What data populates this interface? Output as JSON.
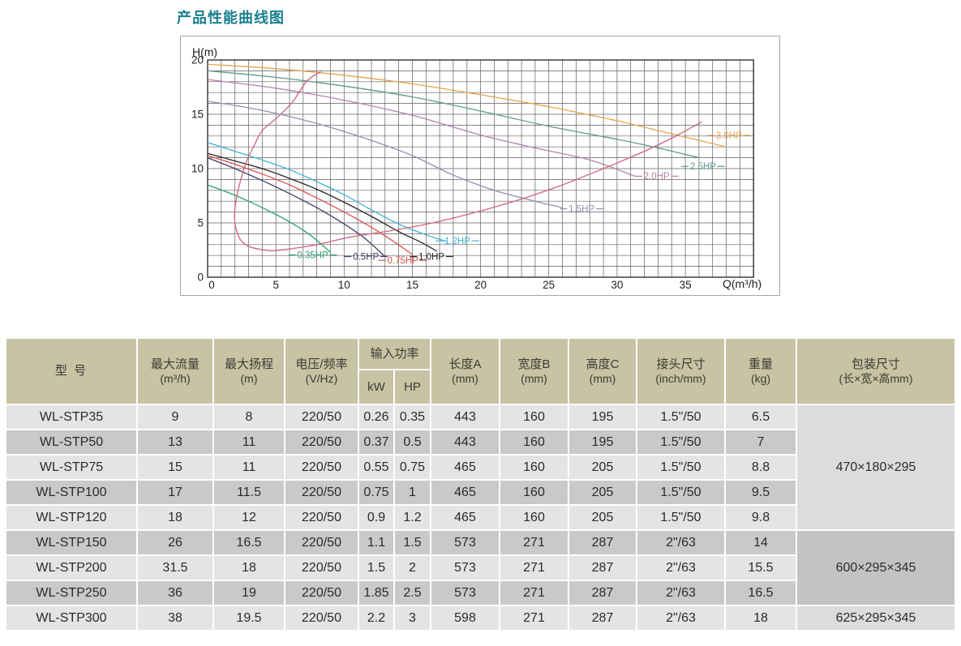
{
  "title": "产品性能曲线图",
  "chart_data": {
    "type": "line",
    "title": "产品性能曲线图",
    "xlabel": "Q(m³/h)",
    "ylabel": "H(m)",
    "xlim": [
      0,
      40
    ],
    "ylim": [
      0,
      20
    ],
    "grid": "minor gridlines every 1 unit on both axes, labels every 5",
    "legend_position": "labels placed at the end of each curve",
    "x_ticks": [
      0,
      5,
      10,
      15,
      20,
      25,
      30,
      35
    ],
    "y_ticks": [
      0,
      5,
      10,
      15,
      20
    ],
    "series": [
      {
        "name": "0.35HP",
        "color": "#2f9e6e",
        "label_pos": [
          7.7,
          2.05
        ],
        "points": [
          [
            0,
            8.5
          ],
          [
            1.5,
            7.8
          ],
          [
            3,
            7.0
          ],
          [
            4.5,
            6.1
          ],
          [
            6,
            5.1
          ],
          [
            7.5,
            3.9
          ],
          [
            9,
            2.3
          ]
        ]
      },
      {
        "name": "0.5HP",
        "color": "#3d3d68",
        "label_pos": [
          11.6,
          1.9
        ],
        "points": [
          [
            0,
            11.0
          ],
          [
            2,
            10.0
          ],
          [
            4,
            8.9
          ],
          [
            6,
            7.7
          ],
          [
            8,
            6.4
          ],
          [
            10,
            4.9
          ],
          [
            11.5,
            3.6
          ],
          [
            13,
            1.9
          ]
        ]
      },
      {
        "name": "0.75HP",
        "color": "#d94f4a",
        "label_pos": [
          14.3,
          1.55
        ],
        "points": [
          [
            0,
            11.2
          ],
          [
            2,
            10.4
          ],
          [
            4,
            9.5
          ],
          [
            6,
            8.5
          ],
          [
            8,
            7.3
          ],
          [
            10,
            6.0
          ],
          [
            12,
            4.6
          ],
          [
            13.5,
            3.4
          ],
          [
            15,
            2.1
          ]
        ]
      },
      {
        "name": "1.0HP",
        "color": "#262626",
        "label_pos": [
          16.4,
          1.9
        ],
        "points": [
          [
            0,
            11.4
          ],
          [
            2,
            10.7
          ],
          [
            4,
            10.0
          ],
          [
            6,
            9.1
          ],
          [
            8,
            8.1
          ],
          [
            10,
            6.9
          ],
          [
            12,
            5.6
          ],
          [
            14,
            4.2
          ],
          [
            15.5,
            3.3
          ],
          [
            16.8,
            2.4
          ]
        ]
      },
      {
        "name": "1.2HP",
        "color": "#41b4d2",
        "label_pos": [
          18.3,
          3.35
        ],
        "points": [
          [
            0,
            12.4
          ],
          [
            2,
            11.6
          ],
          [
            4,
            10.8
          ],
          [
            6,
            9.9
          ],
          [
            8,
            8.8
          ],
          [
            10,
            7.6
          ],
          [
            12,
            6.2
          ],
          [
            14,
            4.9
          ],
          [
            16,
            3.9
          ],
          [
            17.5,
            3.3
          ]
        ]
      },
      {
        "name": "1.5HP",
        "color": "#9091b4",
        "label_pos": [
          27.4,
          6.3
        ],
        "points": [
          [
            0,
            16.2
          ],
          [
            3,
            15.6
          ],
          [
            6,
            14.8
          ],
          [
            9,
            13.8
          ],
          [
            12,
            12.6
          ],
          [
            15,
            11.2
          ],
          [
            18,
            9.4
          ],
          [
            21,
            8.0
          ],
          [
            24,
            7.0
          ],
          [
            26,
            6.4
          ]
        ]
      },
      {
        "name": "2.0HP",
        "color": "#b980a8",
        "label_pos": [
          32.9,
          9.3
        ],
        "points": [
          [
            0,
            18.2
          ],
          [
            5,
            17.4
          ],
          [
            10,
            16.3
          ],
          [
            15,
            14.9
          ],
          [
            20,
            13.1
          ],
          [
            24,
            11.9
          ],
          [
            28,
            10.8
          ],
          [
            31.3,
            9.3
          ]
        ]
      },
      {
        "name": "2.5HP",
        "color": "#5f9a90",
        "label_pos": [
          36.3,
          10.2
        ],
        "points": [
          [
            0,
            19.0
          ],
          [
            5,
            18.4
          ],
          [
            10,
            17.6
          ],
          [
            15,
            16.6
          ],
          [
            20,
            15.3
          ],
          [
            25,
            13.9
          ],
          [
            30,
            12.7
          ],
          [
            33,
            11.9
          ],
          [
            36,
            11.0
          ]
        ]
      },
      {
        "name": "3.0HP",
        "color": "#e7a24b",
        "label_pos": [
          38.2,
          13.05
        ],
        "points": [
          [
            0,
            19.6
          ],
          [
            5,
            19.2
          ],
          [
            10,
            18.6
          ],
          [
            15,
            17.8
          ],
          [
            20,
            16.8
          ],
          [
            25,
            15.7
          ],
          [
            30,
            14.4
          ],
          [
            34,
            13.2
          ],
          [
            38,
            12.0
          ]
        ]
      },
      {
        "name": "operating-envelope",
        "color": "#cf647e",
        "label_pos": null,
        "points": [
          [
            8.3,
            18.9
          ],
          [
            7.3,
            18.1
          ],
          [
            6.2,
            16.1
          ],
          [
            5.0,
            14.6
          ],
          [
            4.0,
            13.5
          ],
          [
            3.4,
            12.1
          ],
          [
            2.9,
            10.8
          ],
          [
            2.5,
            9.3
          ],
          [
            2.2,
            7.8
          ],
          [
            2.0,
            6.3
          ],
          [
            2.0,
            5.0
          ],
          [
            2.2,
            4.0
          ],
          [
            2.5,
            3.3
          ],
          [
            3.1,
            2.8
          ],
          [
            3.9,
            2.55
          ],
          [
            4.8,
            2.45
          ],
          [
            6,
            2.6
          ],
          [
            8,
            3.0
          ],
          [
            10.5,
            3.7
          ],
          [
            13.5,
            4.3
          ],
          [
            16.5,
            5.0
          ],
          [
            20,
            6.1
          ],
          [
            23,
            7.2
          ],
          [
            26,
            8.5
          ],
          [
            29,
            10.0
          ],
          [
            32,
            11.6
          ],
          [
            34,
            12.8
          ],
          [
            36.2,
            14.3
          ]
        ]
      }
    ]
  },
  "table": {
    "headers": {
      "model": "型 号",
      "max_flow": "最大流量",
      "max_flow_unit": "(m³/h)",
      "max_head": "最大扬程",
      "max_head_unit": "(m)",
      "voltage": "电压/频率",
      "voltage_unit": "(V/Hz)",
      "power": "输入功率",
      "power_kw": "kW",
      "power_hp": "HP",
      "length": "长度A",
      "length_unit": "(mm)",
      "width": "宽度B",
      "width_unit": "(mm)",
      "height": "高度C",
      "height_unit": "(mm)",
      "connector": "接头尺寸",
      "connector_unit": "(inch/mm)",
      "weight": "重量",
      "weight_unit": "(kg)",
      "packaging": "包装尺寸",
      "packaging_unit": "(长×宽×高mm)"
    },
    "rows": [
      {
        "model": "WL-STP35",
        "max_flow": "9",
        "max_head": "8",
        "voltage": "220/50",
        "kw": "0.26",
        "hp": "0.35",
        "length": "443",
        "width": "160",
        "height": "195",
        "connector": "1.5\"/50",
        "weight": "6.5"
      },
      {
        "model": "WL-STP50",
        "max_flow": "13",
        "max_head": "11",
        "voltage": "220/50",
        "kw": "0.37",
        "hp": "0.5",
        "length": "443",
        "width": "160",
        "height": "195",
        "connector": "1.5\"/50",
        "weight": "7"
      },
      {
        "model": "WL-STP75",
        "max_flow": "15",
        "max_head": "11",
        "voltage": "220/50",
        "kw": "0.55",
        "hp": "0.75",
        "length": "465",
        "width": "160",
        "height": "205",
        "connector": "1.5\"/50",
        "weight": "8.8"
      },
      {
        "model": "WL-STP100",
        "max_flow": "17",
        "max_head": "11.5",
        "voltage": "220/50",
        "kw": "0.75",
        "hp": "1",
        "length": "465",
        "width": "160",
        "height": "205",
        "connector": "1.5\"/50",
        "weight": "9.5"
      },
      {
        "model": "WL-STP120",
        "max_flow": "18",
        "max_head": "12",
        "voltage": "220/50",
        "kw": "0.9",
        "hp": "1.2",
        "length": "465",
        "width": "160",
        "height": "205",
        "connector": "1.5\"/50",
        "weight": "9.8"
      },
      {
        "model": "WL-STP150",
        "max_flow": "26",
        "max_head": "16.5",
        "voltage": "220/50",
        "kw": "1.1",
        "hp": "1.5",
        "length": "573",
        "width": "271",
        "height": "287",
        "connector": "2\"/63",
        "weight": "14"
      },
      {
        "model": "WL-STP200",
        "max_flow": "31.5",
        "max_head": "18",
        "voltage": "220/50",
        "kw": "1.5",
        "hp": "2",
        "length": "573",
        "width": "271",
        "height": "287",
        "connector": "2\"/63",
        "weight": "15.5"
      },
      {
        "model": "WL-STP250",
        "max_flow": "36",
        "max_head": "19",
        "voltage": "220/50",
        "kw": "1.85",
        "hp": "2.5",
        "length": "573",
        "width": "271",
        "height": "287",
        "connector": "2\"/63",
        "weight": "16.5"
      },
      {
        "model": "WL-STP300",
        "max_flow": "38",
        "max_head": "19.5",
        "voltage": "220/50",
        "kw": "2.2",
        "hp": "3",
        "length": "598",
        "width": "271",
        "height": "287",
        "connector": "2\"/63",
        "weight": "18"
      }
    ],
    "packaging": [
      {
        "text": "470×180×295",
        "start_row": 0,
        "span": 5,
        "shade": "light"
      },
      {
        "text": "600×295×345",
        "start_row": 5,
        "span": 3,
        "shade": "dark"
      },
      {
        "text": "625×295×345",
        "start_row": 8,
        "span": 1,
        "shade": "light"
      }
    ]
  },
  "colors": {
    "title": "#187f8e",
    "header_bg": "#c7c3a3",
    "row_light": "#e4e4e4",
    "row_dark": "#c9c9c9",
    "grid_line": "#5f5f5f",
    "plot_border": "#303030",
    "frame_border": "#a6a6a6"
  }
}
